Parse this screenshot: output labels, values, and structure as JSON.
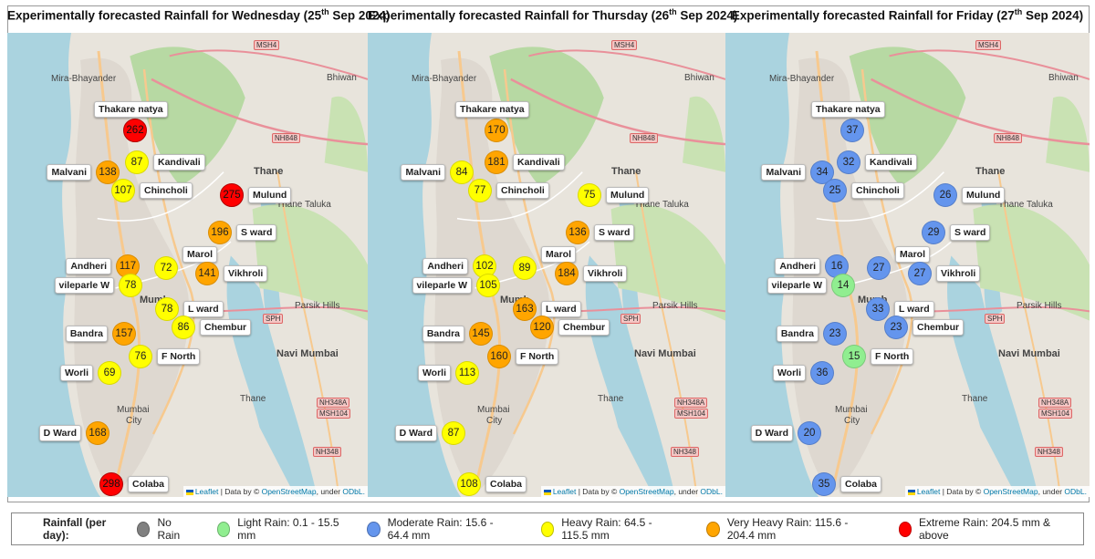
{
  "panels": [
    {
      "title_pre": "Experimentally forecasted Rainfall for Wednesday (25",
      "title_sup": "th",
      "title_post": " Sep 2024)"
    },
    {
      "title_pre": "Experimentally forecasted Rainfall for Thursday  (26",
      "title_sup": "th",
      "title_post": " Sep 2024)"
    },
    {
      "title_pre": "Experimentally forecasted Rainfall for Friday (27",
      "title_sup": "th",
      "title_post": " Sep 2024)"
    }
  ],
  "stations": [
    "Thakare natya",
    "Kandivali",
    "Malvani",
    "Chincholi",
    "Mulund",
    "S ward",
    "Marol",
    "Andheri",
    "Vikhroli",
    "vileparle W",
    "L ward",
    "Chembur",
    "Bandra",
    "F North",
    "Worli",
    "D Ward",
    "Colaba"
  ],
  "forecasts": [
    [
      262,
      87,
      138,
      107,
      275,
      196,
      72,
      117,
      141,
      78,
      78,
      86,
      157,
      76,
      69,
      168,
      298
    ],
    [
      170,
      181,
      84,
      77,
      75,
      136,
      89,
      102,
      184,
      105,
      163,
      120,
      145,
      160,
      113,
      87,
      108
    ],
    [
      37,
      32,
      34,
      25,
      26,
      29,
      27,
      16,
      27,
      14,
      33,
      23,
      23,
      15,
      36,
      20,
      35
    ]
  ],
  "map_labels": {
    "mira": "Mira-Bhayander",
    "bhiwandi": "Bhiwan",
    "thane": "Thane",
    "thane_taluka": "Thane Taluka",
    "navi_mumbai": "Navi Mumbai",
    "parsik": "Parsik Hills",
    "mumbai": "Mumbai",
    "city": "City",
    "thane2": "Thane",
    "mumb": "Mumb",
    "msh4": "MSH4",
    "nh848": "NH848",
    "sph": "SPH",
    "nh348a": "NH348A",
    "msh104": "MSH104",
    "nh348": "NH348"
  },
  "attribution": {
    "leaflet": "Leaflet",
    "sep": " | Data by © ",
    "osm": "OpenStreetMap",
    "under": ", under ",
    "odbl": "ODbL."
  },
  "legend": {
    "title": "Rainfall (per day):",
    "items": [
      {
        "label": "No Rain",
        "color": "#808080"
      },
      {
        "label": "Light Rain: 0.1 - 15.5 mm",
        "color": "#90ee90"
      },
      {
        "label": "Moderate Rain: 15.6 - 64.4 mm",
        "color": "#6495ed"
      },
      {
        "label": "Heavy Rain: 64.5 - 115.5 mm",
        "color": "#ffff00"
      },
      {
        "label": "Very Heavy Rain: 115.6 - 204.4 mm",
        "color": "#ffa500"
      },
      {
        "label": "Extreme Rain: 204.5 mm & above",
        "color": "#ff0000"
      }
    ]
  }
}
